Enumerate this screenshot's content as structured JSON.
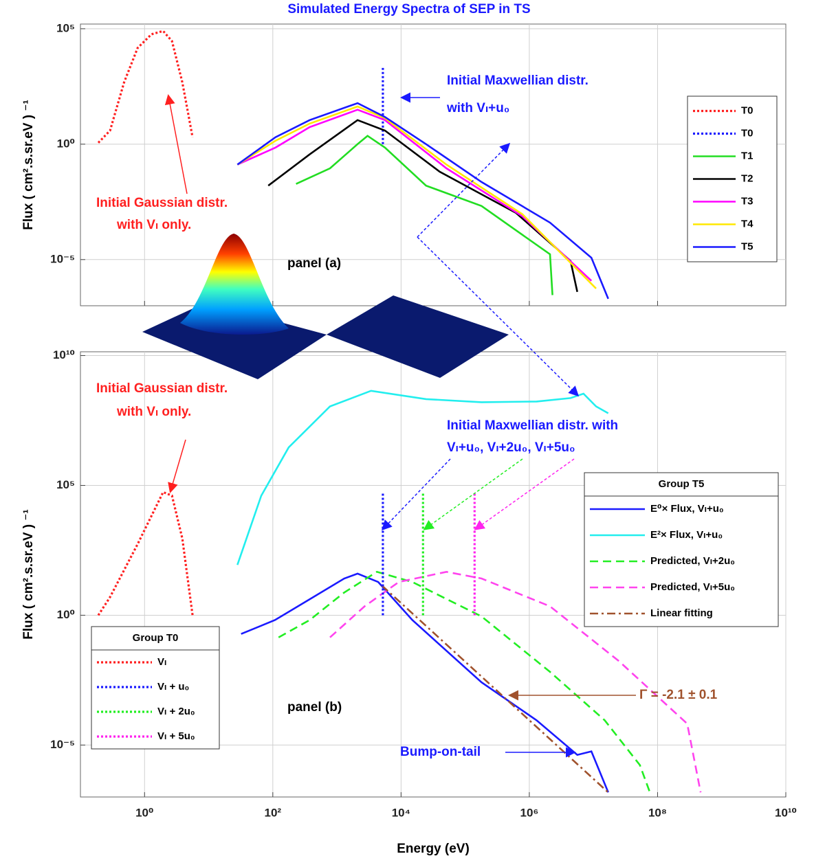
{
  "chart_data": [
    {
      "type": "line",
      "title": "Simulated Energy Spectra of SEP in TS",
      "ylabel": "Flux  ( cm².s.sr.eV ) ⁻¹",
      "xscale": "log",
      "yscale": "log",
      "grid": true,
      "legend_loc": "upper right",
      "xtick_labels": false,
      "xlim": [
        0.1,
        10000000000
      ],
      "ylim": [
        1e-07,
        160000
      ],
      "xticks": [
        1,
        100,
        10000,
        1000000,
        100000000
      ],
      "yticks": [
        {
          "value": 100000,
          "label": "10⁵"
        },
        {
          "value": 1,
          "label": "10⁰"
        },
        {
          "value": 1e-05,
          "label": "10⁻⁵"
        }
      ],
      "annotations": [
        "Initial Maxwellian distr.",
        "with Vₗ+u₀",
        "Initial Gaussian distr.",
        "with Vₗ only.",
        "panel (a)"
      ],
      "series": [
        {
          "name": "T0",
          "color": "#ff2020",
          "linestyle": "dotted",
          "x": [
            0.19,
            0.29,
            0.48,
            0.78,
            1.28,
            1.95,
            2.68,
            3.88,
            5.6
          ],
          "values": [
            1.15,
            3.9,
            480,
            14700,
            57700,
            80000,
            29000,
            480,
            2
          ]
        },
        {
          "name": "T0",
          "color": "#1a1aff",
          "linestyle": "dotted",
          "x": [
            5200,
            5200
          ],
          "values": [
            1,
            2000
          ]
        },
        {
          "name": "T1",
          "color": "#22dd22",
          "linestyle": "solid",
          "x": [
            230,
            780,
            2100,
            3000,
            5600,
            24500,
            180000,
            2100000,
            2300000
          ],
          "values": [
            0.019,
            0.09,
            1,
            2.3,
            0.71,
            0.016,
            0.0021,
            1.7e-05,
            2.9e-07
          ]
        },
        {
          "name": "T2",
          "color": "#000000",
          "linestyle": "solid",
          "x": [
            85,
            375,
            2100,
            5600,
            40000,
            620000,
            4400000,
            5600000
          ],
          "values": [
            0.016,
            0.36,
            11,
            3.9,
            0.064,
            0.00105,
            8.7e-06,
            4e-07
          ]
        },
        {
          "name": "T3",
          "color": "#ff00ff",
          "linestyle": "solid",
          "x": [
            28,
            110,
            375,
            2100,
            5600,
            51000,
            780000,
            9300000
          ],
          "values": [
            0.13,
            0.71,
            5.5,
            31,
            11,
            0.09,
            0.00075,
            1.2e-06
          ]
        },
        {
          "name": "T4",
          "color": "#ffe800",
          "linestyle": "solid",
          "x": [
            28,
            110,
            375,
            2100,
            5600,
            51000,
            780000,
            11000000
          ],
          "values": [
            0.13,
            1.4,
            7.8,
            43,
            13.5,
            0.13,
            0.00092,
            5.6e-07
          ]
        },
        {
          "name": "T5",
          "color": "#1a1aff",
          "linestyle": "solid",
          "x": [
            28,
            110,
            375,
            2100,
            5600,
            24500,
            180000,
            2100000,
            9300000,
            17000000
          ],
          "values": [
            0.13,
            2,
            11,
            60,
            15,
            1,
            0.023,
            0.0004,
            1.2e-05,
            2e-07
          ]
        }
      ]
    },
    {
      "type": "line",
      "xlabel": "Energy (eV)",
      "ylabel": "Flux  ( cm².s.sr.eV ) ⁻¹",
      "xscale": "log",
      "yscale": "log",
      "grid": true,
      "xtick_labels": true,
      "xlim": [
        0.1,
        10000000000
      ],
      "ylim": [
        1e-07,
        14000000000
      ],
      "xticks": [
        {
          "value": 1,
          "label": "10⁰"
        },
        {
          "value": 100,
          "label": "10²"
        },
        {
          "value": 10000,
          "label": "10⁴"
        },
        {
          "value": 1000000,
          "label": "10⁶"
        },
        {
          "value": 100000000,
          "label": "10⁸"
        },
        {
          "value": 10000000000,
          "label": "10¹⁰"
        }
      ],
      "yticks": [
        {
          "value": 10000000000,
          "label": "10¹⁰"
        },
        {
          "value": 100000,
          "label": "10⁵"
        },
        {
          "value": 1,
          "label": "10⁰"
        },
        {
          "value": 1e-05,
          "label": "10⁻⁵"
        }
      ],
      "annotations": [
        "Initial Gaussian distr.",
        "with Vₗ only.",
        "Initial Maxwellian distr. with",
        "Vₗ+u₀, Vₗ+2u₀, Vₗ+5u₀",
        "panel (b)",
        "Γ = -2.1 ± 0.1",
        "Bump-on-tail"
      ],
      "series_groups": [
        {
          "title": "Group T5",
          "legend_loc": "center right",
          "series": [
            {
              "name": "E⁰× Flux,  Vₗ+u₀",
              "color": "#1a1aff",
              "linestyle": "solid",
              "x": [
                32,
                108,
                375,
                1300,
                2100,
                4400,
                15000,
                180000,
                1300000,
                5600000,
                9300000,
                17000000
              ],
              "values": [
                0.19,
                0.65,
                4.1,
                26,
                40,
                19,
                0.65,
                0.0026,
                9e-05,
                4.2e-06,
                5.7e-06,
                1.5e-07
              ]
            },
            {
              "name": "E²× Flux,  Vₗ+u₀",
              "color": "#22eeee",
              "linestyle": "solid",
              "x": [
                28,
                66,
                177,
                780,
                3400,
                24500,
                180000,
                1300000,
                4400000,
                7000000,
                11000000,
                17000000
              ],
              "values": [
                87,
                40000,
                2900000,
                110000000,
                440000000,
                210000000,
                160000000,
                170000000,
                230000000,
                340000000,
                110000000,
                60000000
              ]
            },
            {
              "name": "Predicted, Vₗ+2u₀",
              "color": "#22ee22",
              "linestyle": "dashed",
              "x": [
                123,
                375,
                1300,
                4200,
                15000,
                180000,
                2100000,
                15000000,
                53000000,
                76000000
              ],
              "values": [
                0.14,
                0.65,
                7.5,
                47,
                19,
                0.9,
                0.0066,
                9e-05,
                1.7e-06,
                1.5e-07
              ]
            },
            {
              "name": "Predicted, Vₗ+5u₀",
              "color": "#ff44ee",
              "linestyle": "dashed",
              "x": [
                780,
                2700,
                9200,
                51000,
                180000,
                2100000,
                25000000,
                290000000,
                470000000
              ],
              "values": [
                0.14,
                2.2,
                19,
                47,
                26,
                2.2,
                0.017,
                6.6e-05,
                1.5e-07
              ]
            },
            {
              "name": "Linear fitting",
              "color": "#a0522d",
              "linestyle": "dashdot",
              "x": [
                5000,
                17000000
              ],
              "values": [
                14,
                1.5e-07
              ]
            }
          ]
        },
        {
          "title": "Group T0",
          "legend_loc": "lower left",
          "series": [
            {
              "name": "Vₗ",
              "color": "#ff2020",
              "linestyle": "dotted",
              "x": [
                0.19,
                0.29,
                0.78,
                1.95,
                2.68,
                3.88,
                5.6
              ],
              "values": [
                1,
                5,
                550,
                55000,
                40000,
                900,
                1
              ]
            },
            {
              "name": "Vₗ + u₀",
              "color": "#1a1aff",
              "linestyle": "dotted",
              "x": [
                5200,
                5200
              ],
              "values": [
                1,
                48000
              ]
            },
            {
              "name": "Vₗ + 2u₀",
              "color": "#22ee22",
              "linestyle": "dotted",
              "x": [
                22000,
                22000
              ],
              "values": [
                1,
                52000
              ]
            },
            {
              "name": "Vₗ + 5u₀",
              "color": "#ff22ee",
              "linestyle": "dotted",
              "x": [
                140000,
                140000
              ],
              "values": [
                1,
                48000
              ]
            }
          ]
        }
      ]
    }
  ]
}
